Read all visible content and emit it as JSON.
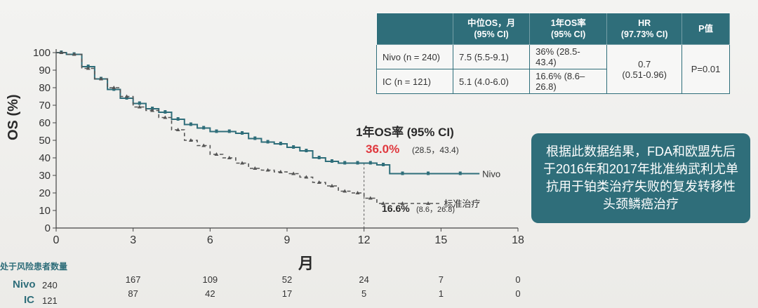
{
  "chart_data": {
    "type": "line",
    "ylabel": "OS (%)",
    "xlabel": "月",
    "xlim": [
      0,
      18
    ],
    "ylim": [
      0,
      100
    ],
    "xticks": [
      0,
      3,
      6,
      9,
      12,
      15,
      18
    ],
    "yticks": [
      0,
      10,
      20,
      30,
      40,
      50,
      60,
      70,
      80,
      90,
      100
    ],
    "series": [
      {
        "name": "Nivo",
        "color": "#2f6e7a",
        "style": "solid",
        "x": [
          0,
          0.4,
          1,
          1.5,
          2,
          2.5,
          3,
          3.5,
          4,
          4.5,
          5,
          5.5,
          6,
          6.5,
          7,
          7.5,
          8,
          8.5,
          9,
          9.5,
          10,
          10.5,
          11,
          11.5,
          12,
          12.5,
          13,
          14,
          15,
          16.5
        ],
        "y": [
          100,
          99,
          92,
          85,
          79,
          74,
          71,
          68,
          66,
          62,
          59,
          57,
          55,
          55,
          54,
          51,
          49,
          48,
          46,
          44,
          40,
          38,
          37,
          37,
          37,
          36,
          31,
          31,
          31,
          31
        ]
      },
      {
        "name": "标准治疗",
        "color": "#555555",
        "style": "dashed",
        "x": [
          0,
          0.4,
          1,
          1.5,
          2,
          2.5,
          3,
          3.5,
          4,
          4.5,
          5,
          5.5,
          6,
          6.5,
          7,
          7.5,
          8,
          8.5,
          9,
          9.5,
          10,
          10.5,
          11,
          11.5,
          12,
          12.5,
          13,
          14,
          15
        ],
        "y": [
          100,
          99,
          91,
          85,
          80,
          75,
          69,
          67,
          63,
          56,
          50,
          47,
          42,
          40,
          37,
          34,
          33,
          32,
          31,
          29,
          26,
          24,
          21,
          20,
          17,
          14,
          14,
          14,
          14
        ]
      }
    ],
    "annotations": {
      "os_title": "1年OS率 (95% CI)",
      "nivo_rate": "36.0%",
      "nivo_ci": "(28.5，43.4)",
      "ic_rate": "16.6%",
      "ic_ci": "(8.6，26.8)"
    }
  },
  "table": {
    "headers": [
      "",
      "中位OS，月\n(95% CI)",
      "1年OS率\n(95% CI)",
      "HR\n(97.73% CI)",
      "P值"
    ],
    "rows": [
      {
        "group": "Nivo (n = 240)",
        "median": "7.5 (5.5-9.1)",
        "rate": "36% (28.5-43.4)"
      },
      {
        "group": "IC (n = 121)",
        "median": "5.1 (4.0-6.0)",
        "rate": "16.6% (8.6–26.8)"
      }
    ],
    "hr": "0.7\n(0.51-0.96)",
    "p": "P=0.01"
  },
  "note": "根据此数据结果，FDA和欧盟先后于2016年和2017年批准纳武利尤单抗用于铂类治疗失败的复发转移性头颈鳞癌治疗",
  "risk": {
    "title": "处于风险患者数量",
    "rows": [
      {
        "label": "Nivo",
        "n": "240",
        "values": [
          "167",
          "109",
          "52",
          "24",
          "7",
          "0"
        ]
      },
      {
        "label": "IC",
        "n": "121",
        "values": [
          "87",
          "42",
          "17",
          "5",
          "1",
          "0"
        ]
      }
    ]
  }
}
